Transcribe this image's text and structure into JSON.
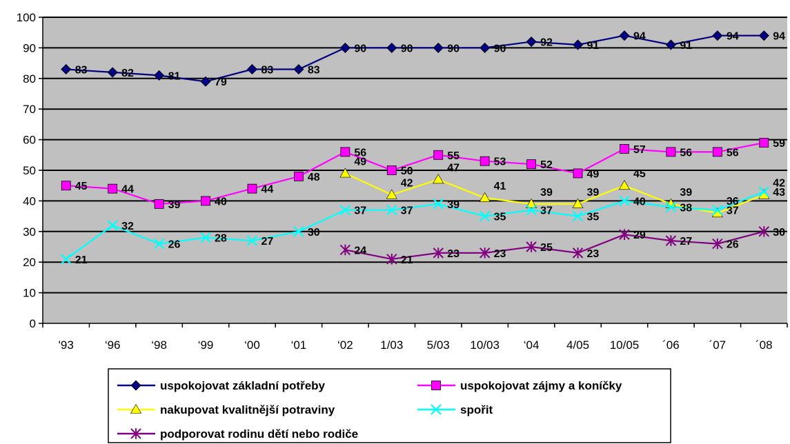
{
  "chart_data": {
    "type": "line",
    "categories": [
      "'93",
      "‘96",
      "‘98",
      "‘99",
      "‘00",
      "‘01",
      "‘02",
      "1/03",
      "5/03",
      "10/03",
      "‘04",
      "4/05",
      "10/05",
      "´06",
      "´07",
      "´08"
    ],
    "ylim": [
      0,
      100
    ],
    "yticks": [
      0,
      10,
      20,
      30,
      40,
      50,
      60,
      70,
      80,
      90,
      100
    ],
    "grid": true,
    "legend_position": "bottom",
    "plot_background": "#c0c0c0",
    "series": [
      {
        "name": "uspokojovat základní potřeby",
        "color": "#000080",
        "marker": "diamond",
        "values": [
          83,
          82,
          81,
          79,
          83,
          83,
          90,
          90,
          90,
          90,
          92,
          91,
          94,
          91,
          94,
          94
        ]
      },
      {
        "name": "uspokojovat zájmy a koníčky",
        "color": "#ff00ff",
        "marker": "square",
        "values": [
          45,
          44,
          39,
          40,
          44,
          48,
          56,
          50,
          55,
          53,
          52,
          49,
          57,
          56,
          56,
          59
        ]
      },
      {
        "name": "nakupovat kvalitnější potraviny",
        "color": "#ffff00",
        "marker": "triangle",
        "values": [
          null,
          null,
          null,
          null,
          null,
          null,
          49,
          42,
          47,
          41,
          39,
          39,
          45,
          39,
          36,
          42
        ]
      },
      {
        "name": "spořit",
        "color": "#00ffff",
        "marker": "x",
        "values": [
          21,
          32,
          26,
          28,
          27,
          30,
          37,
          37,
          39,
          35,
          37,
          35,
          40,
          38,
          37,
          43
        ]
      },
      {
        "name": "podporovat rodinu dětí nebo rodiče",
        "color": "#800080",
        "marker": "star",
        "values": [
          null,
          null,
          null,
          null,
          null,
          null,
          24,
          21,
          23,
          23,
          25,
          23,
          29,
          27,
          26,
          30
        ]
      }
    ]
  }
}
